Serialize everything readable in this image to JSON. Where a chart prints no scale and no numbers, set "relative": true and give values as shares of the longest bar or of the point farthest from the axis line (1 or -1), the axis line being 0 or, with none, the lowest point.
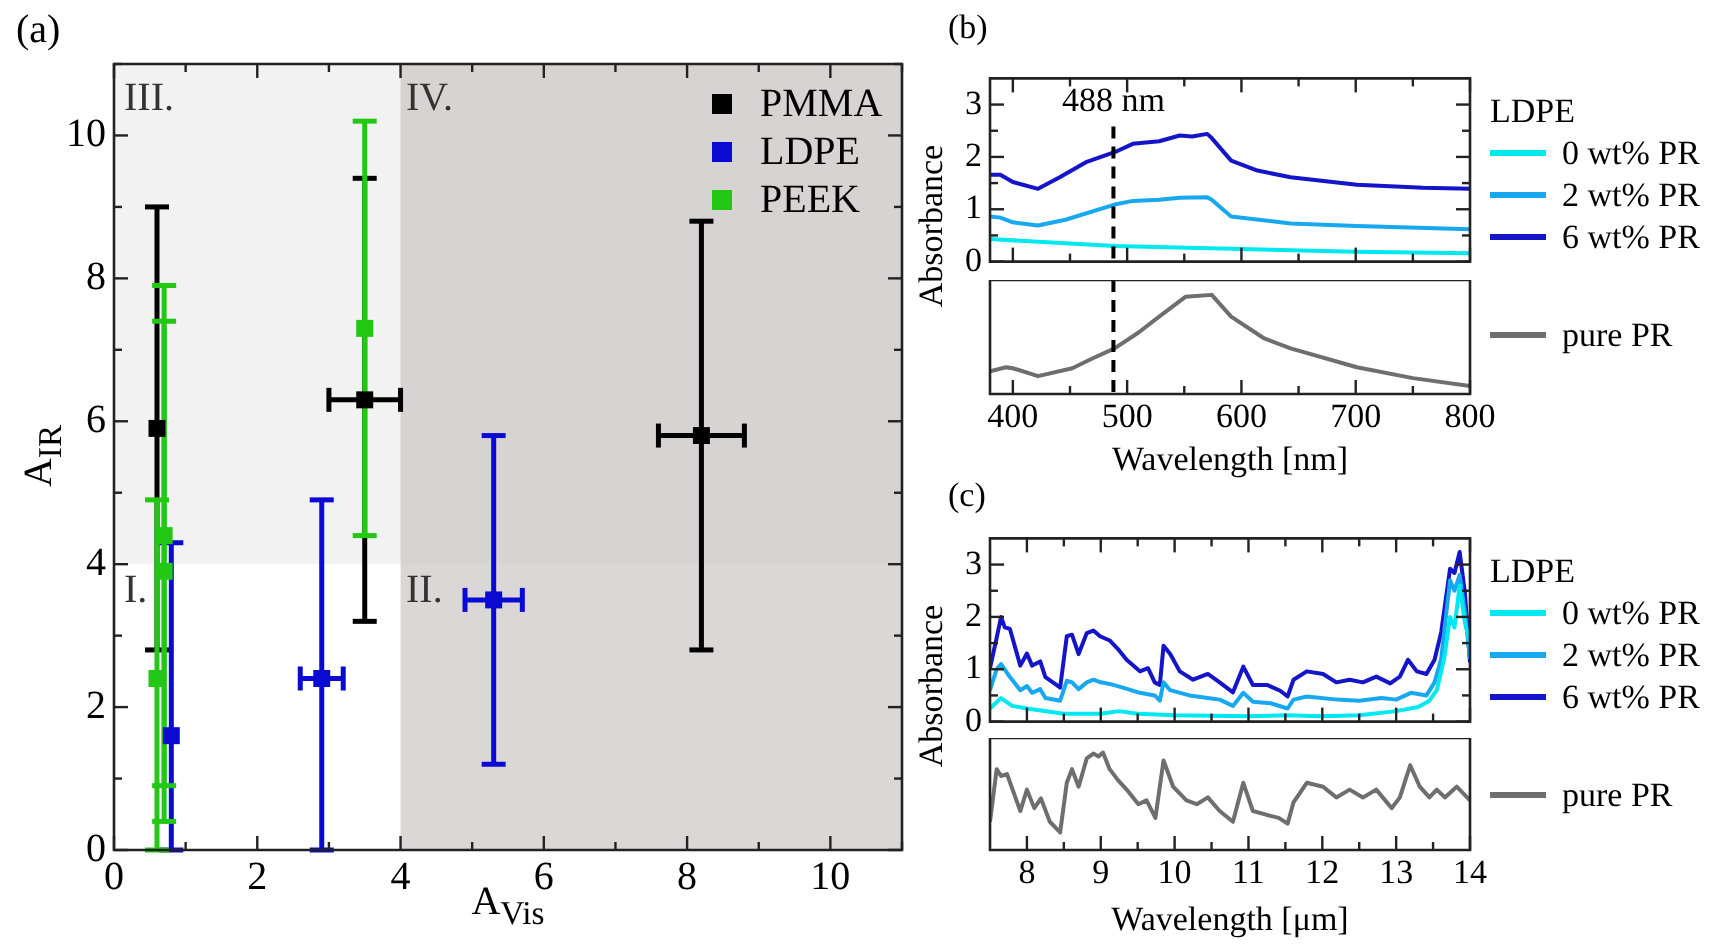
{
  "chart_data": [
    {
      "type": "scatter",
      "title": "(a)",
      "xlabel": "A$_{Vis}$",
      "ylabel": "A$_{IR}$",
      "xlim": [
        0,
        11
      ],
      "ylim": [
        0,
        11
      ],
      "xticks": [
        0,
        {
          "value": 1,
          "label": null
        },
        2,
        {
          "value": 3,
          "label": null
        },
        4,
        {
          "value": 5,
          "label": null
        },
        6,
        {
          "value": 7,
          "label": null
        },
        8,
        {
          "value": 9,
          "label": null
        },
        10,
        {
          "value": 11,
          "label": null
        }
      ],
      "yticks": [
        0,
        {
          "value": 1,
          "label": null
        },
        2,
        {
          "value": 3,
          "label": null
        },
        4,
        {
          "value": 5,
          "label": null
        },
        6,
        {
          "value": 7,
          "label": null
        },
        8,
        {
          "value": 9,
          "label": null
        },
        10,
        {
          "value": 11,
          "label": null
        }
      ],
      "marker": "square",
      "legend": "top right",
      "bands": [
        {
          "axis": "y",
          "from": 4,
          "to": 11,
          "color": "#ebebeb"
        },
        {
          "axis": "x",
          "from": 4,
          "to": 11,
          "color": "#c9c1c1"
        }
      ],
      "annotations": [
        "III.",
        "IV.",
        "I.",
        "II."
      ],
      "series": [
        {
          "name": "PMMA",
          "color": "#000000",
          "x": [
            0.6,
            3.5,
            8.2
          ],
          "values": [
            5.9,
            6.3,
            5.8
          ],
          "errors": [
            [
              2.8,
              9.0
            ],
            [
              3.2,
              9.4
            ],
            [
              2.8,
              8.8
            ]
          ],
          "xerrors": [
            null,
            [
              3.0,
              4.0
            ],
            [
              7.6,
              8.8
            ]
          ]
        },
        {
          "name": "LDPE",
          "color": "#0a0ad2",
          "x": [
            0.8,
            2.9,
            5.3
          ],
          "values": [
            1.6,
            2.4,
            3.5
          ],
          "errors": [
            [
              0,
              4.3
            ],
            [
              0,
              4.9
            ],
            [
              1.2,
              5.8
            ]
          ],
          "xerrors": [
            null,
            [
              2.6,
              3.2
            ],
            [
              4.9,
              5.7
            ]
          ]
        },
        {
          "name": "PEEK",
          "color": "#22c814",
          "x": [
            0.6,
            0.7,
            0.7,
            3.5
          ],
          "values": [
            2.4,
            3.9,
            4.4,
            7.3
          ],
          "errors": [
            [
              0,
              4.9
            ],
            [
              0.4,
              7.4
            ],
            [
              0.9,
              7.9
            ],
            [
              4.4,
              10.2
            ]
          ]
        }
      ]
    },
    {
      "type": "line",
      "title": "(b)",
      "ylabel": "Absorbance",
      "legend_title": "LDPE",
      "legend": "right",
      "tick_labels": "y",
      "xlim": [
        380,
        800
      ],
      "xticks": [
        400,
        {
          "value": 450,
          "label": null
        },
        500,
        {
          "value": 550,
          "label": null
        },
        600,
        {
          "value": 650,
          "label": null
        },
        700,
        {
          "value": 750,
          "label": null
        },
        800
      ],
      "ylim": [
        0,
        3.5
      ],
      "yticks": [
        0,
        {
          "value": 0.5,
          "label": null
        },
        1,
        {
          "value": 1.5,
          "label": null
        },
        2,
        {
          "value": 2.5,
          "label": null
        },
        3
      ],
      "ref_lines": [
        {
          "axis": "x",
          "value": 488,
          "label": "488 nm",
          "line_style": "dashed",
          "color": "#000000"
        }
      ],
      "series": [
        {
          "name": "0 wt% PR",
          "color": "#00e8f0",
          "x": [
            380,
            489,
            600,
            700,
            800
          ],
          "values": [
            0.43,
            0.3,
            0.24,
            0.19,
            0.16
          ]
        },
        {
          "name": "2 wt% PR",
          "color": "#18a8f0",
          "x": [
            380,
            389,
            400,
            422,
            446,
            489,
            505,
            528,
            546,
            570,
            574,
            591,
            643,
            701,
            800
          ],
          "values": [
            0.86,
            0.84,
            0.75,
            0.69,
            0.8,
            1.09,
            1.16,
            1.18,
            1.22,
            1.23,
            1.18,
            0.86,
            0.73,
            0.68,
            0.62
          ]
        },
        {
          "name": "6 wt% PR",
          "color": "#1414c8",
          "x": [
            380,
            389,
            400,
            422,
            441,
            464,
            489,
            505,
            528,
            546,
            557,
            570,
            574,
            591,
            614,
            643,
            701,
            759,
            800
          ],
          "values": [
            1.66,
            1.66,
            1.52,
            1.39,
            1.61,
            1.9,
            2.09,
            2.25,
            2.3,
            2.41,
            2.39,
            2.44,
            2.36,
            1.93,
            1.74,
            1.61,
            1.47,
            1.41,
            1.39
          ]
        }
      ]
    },
    {
      "type": "line",
      "relative": true,
      "xlabel": "Wavelength [nm]",
      "legend": "right",
      "tick_labels": "x",
      "xlim": [
        380,
        800
      ],
      "xticks": [
        400,
        {
          "value": 450,
          "label": null
        },
        500,
        {
          "value": 550,
          "label": null
        },
        600,
        {
          "value": 650,
          "label": null
        },
        700,
        {
          "value": 750,
          "label": null
        },
        800
      ],
      "ref_lines": [
        {
          "axis": "x",
          "value": 488,
          "line_style": "dashed",
          "color": "#000000"
        }
      ],
      "series": [
        {
          "name": "pure PR",
          "color": "#6e6e6e",
          "x": [
            380,
            394,
            400,
            422,
            452,
            470,
            489,
            510,
            528,
            551,
            574,
            591,
            620,
            643,
            701,
            750,
            800
          ],
          "values": [
            0.23,
            0.27,
            0.26,
            0.18,
            0.26,
            0.36,
            0.46,
            0.62,
            0.78,
            0.98,
            1.0,
            0.78,
            0.56,
            0.46,
            0.27,
            0.16,
            0.08
          ]
        }
      ]
    },
    {
      "type": "line",
      "title": "(c)",
      "ylabel": "Absorbance",
      "legend_title": "LDPE",
      "legend": "right",
      "tick_labels": "y",
      "xlim": [
        7.5,
        14
      ],
      "xticks": [
        8,
        {
          "value": 8.5,
          "label": null
        },
        9,
        {
          "value": 9.5,
          "label": null
        },
        10,
        {
          "value": 10.5,
          "label": null
        },
        11,
        {
          "value": 11.5,
          "label": null
        },
        12,
        {
          "value": 12.5,
          "label": null
        },
        13,
        {
          "value": 13.5,
          "label": null
        },
        14
      ],
      "ylim": [
        0,
        3.5
      ],
      "yticks": [
        0,
        {
          "value": 0.5,
          "label": null
        },
        1,
        {
          "value": 1.5,
          "label": null
        },
        2,
        {
          "value": 2.5,
          "label": null
        },
        3
      ],
      "series": [
        {
          "name": "0 wt% PR",
          "color": "#00e8f0",
          "x": [
            7.5,
            7.65,
            7.8,
            8.0,
            8.5,
            9.0,
            9.25,
            9.5,
            10.0,
            11.0,
            11.5,
            12.0,
            12.5,
            13.0,
            13.3,
            13.45,
            13.55,
            13.65,
            13.73,
            13.79,
            13.86,
            13.93,
            14.0
          ],
          "values": [
            0.25,
            0.45,
            0.3,
            0.25,
            0.15,
            0.15,
            0.2,
            0.15,
            0.12,
            0.1,
            0.12,
            0.1,
            0.12,
            0.2,
            0.28,
            0.4,
            0.6,
            1.2,
            2.0,
            1.8,
            2.6,
            1.9,
            1.5
          ]
        },
        {
          "name": "2 wt% PR",
          "color": "#18a8f0",
          "x": [
            7.5,
            7.59,
            7.65,
            7.77,
            7.91,
            8.0,
            8.07,
            8.18,
            8.25,
            8.45,
            8.54,
            8.61,
            8.7,
            8.81,
            8.9,
            9.0,
            9.12,
            9.3,
            9.53,
            9.73,
            9.8,
            9.85,
            9.94,
            10.2,
            10.45,
            10.61,
            10.79,
            10.93,
            11.06,
            11.3,
            11.53,
            11.61,
            11.79,
            12.2,
            12.5,
            12.8,
            13.0,
            13.2,
            13.41,
            13.52,
            13.61,
            13.73,
            13.79,
            13.86,
            13.93,
            14.0
          ],
          "values": [
            0.6,
            1.0,
            1.1,
            0.85,
            0.6,
            0.68,
            0.55,
            0.62,
            0.45,
            0.4,
            0.78,
            0.75,
            0.62,
            0.75,
            0.8,
            0.75,
            0.72,
            0.65,
            0.55,
            0.5,
            0.4,
            0.75,
            0.6,
            0.5,
            0.45,
            0.42,
            0.3,
            0.55,
            0.38,
            0.35,
            0.25,
            0.42,
            0.48,
            0.42,
            0.4,
            0.45,
            0.42,
            0.55,
            0.5,
            0.75,
            1.2,
            2.7,
            2.5,
            2.8,
            2.1,
            1.2
          ]
        },
        {
          "name": "6 wt% PR",
          "color": "#1414c8",
          "x": [
            7.5,
            7.59,
            7.65,
            7.7,
            7.77,
            7.91,
            8.0,
            8.07,
            8.18,
            8.25,
            8.4,
            8.45,
            8.54,
            8.61,
            8.7,
            8.81,
            8.9,
            8.99,
            9.12,
            9.23,
            9.35,
            9.53,
            9.64,
            9.73,
            9.8,
            9.85,
            9.94,
            10.07,
            10.25,
            10.45,
            10.61,
            10.79,
            10.93,
            11.06,
            11.25,
            11.43,
            11.53,
            11.61,
            11.79,
            12.01,
            12.19,
            12.37,
            12.55,
            12.73,
            12.92,
            13.05,
            13.16,
            13.28,
            13.41,
            13.52,
            13.61,
            13.73,
            13.79,
            13.86,
            13.93,
            14.0
          ],
          "values": [
            1.02,
            1.6,
            2.0,
            1.8,
            1.77,
            1.07,
            1.3,
            1.07,
            1.15,
            0.85,
            0.7,
            0.65,
            1.63,
            1.66,
            1.29,
            1.69,
            1.74,
            1.63,
            1.55,
            1.39,
            1.18,
            0.96,
            1.02,
            0.75,
            0.7,
            1.45,
            1.29,
            0.96,
            0.8,
            0.91,
            0.75,
            0.56,
            1.05,
            0.7,
            0.7,
            0.59,
            0.48,
            0.8,
            0.96,
            0.91,
            0.75,
            0.8,
            0.75,
            0.86,
            0.73,
            0.86,
            1.18,
            0.96,
            0.91,
            1.18,
            1.71,
            2.92,
            2.84,
            3.24,
            2.47,
            1.13
          ]
        }
      ]
    },
    {
      "type": "line",
      "relative": true,
      "xlabel": "Wavelength [μm]",
      "legend": "right",
      "tick_labels": "x",
      "xlim": [
        7.5,
        14
      ],
      "xticks": [
        8,
        {
          "value": 8.5,
          "label": null
        },
        9,
        {
          "value": 9.5,
          "label": null
        },
        10,
        {
          "value": 10.5,
          "label": null
        },
        11,
        {
          "value": 11.5,
          "label": null
        },
        12,
        {
          "value": 12.5,
          "label": null
        },
        13,
        {
          "value": 13.5,
          "label": null
        },
        14
      ],
      "series": [
        {
          "name": "pure PR",
          "color": "#6e6e6e",
          "x": [
            7.5,
            7.59,
            7.65,
            7.73,
            7.91,
            8.0,
            8.1,
            8.19,
            8.31,
            8.45,
            8.54,
            8.61,
            8.7,
            8.81,
            8.9,
            8.97,
            9.03,
            9.12,
            9.23,
            9.35,
            9.51,
            9.62,
            9.74,
            9.85,
            9.98,
            10.16,
            10.3,
            10.45,
            10.61,
            10.79,
            10.93,
            11.06,
            11.25,
            11.41,
            11.53,
            11.61,
            11.79,
            12.01,
            12.19,
            12.37,
            12.55,
            12.73,
            12.94,
            13.05,
            13.19,
            13.32,
            13.45,
            13.55,
            13.66,
            13.82,
            14.0
          ],
          "values": [
            0.29,
            0.83,
            0.76,
            0.78,
            0.4,
            0.62,
            0.43,
            0.53,
            0.29,
            0.18,
            0.69,
            0.83,
            0.65,
            0.94,
            0.99,
            0.96,
            1.0,
            0.83,
            0.72,
            0.62,
            0.47,
            0.51,
            0.33,
            0.92,
            0.65,
            0.51,
            0.47,
            0.54,
            0.4,
            0.29,
            0.69,
            0.4,
            0.36,
            0.33,
            0.27,
            0.49,
            0.69,
            0.65,
            0.54,
            0.62,
            0.54,
            0.62,
            0.43,
            0.54,
            0.87,
            0.65,
            0.54,
            0.62,
            0.54,
            0.65,
            0.51
          ]
        }
      ]
    }
  ]
}
